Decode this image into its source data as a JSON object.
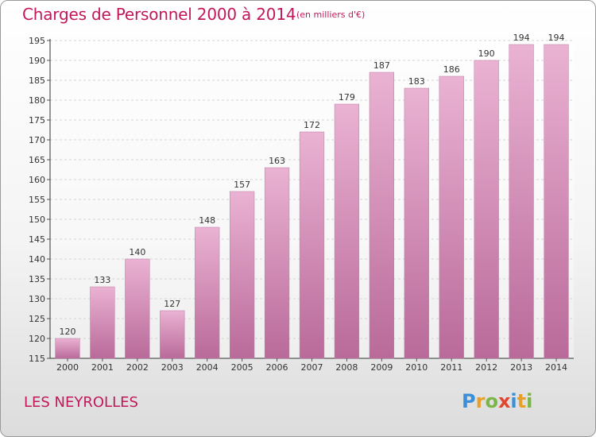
{
  "header": {
    "title": "Charges de Personnel 2000 à 2014",
    "subtitle": "(en milliers d'€)"
  },
  "footer": {
    "commune": "LES NEYROLLES",
    "logo_letters": [
      "P",
      "r",
      "o",
      "x",
      "i",
      "t",
      "i"
    ],
    "logo_colors": [
      "#3b8ed8",
      "#e8a02a",
      "#7ab648",
      "#e2452f",
      "#3b8ed8",
      "#e8a02a",
      "#7ab648"
    ]
  },
  "colors": {
    "bar": "#d98fbd",
    "bar_light": "#eab2d3",
    "bar_dark": "#b96a99",
    "text": "#c2185b",
    "grid": "#d4d4d4"
  },
  "chart_data": {
    "type": "bar",
    "title": "Charges de Personnel 2000 à 2014",
    "subtitle": "(en milliers d'€)",
    "categories": [
      "2000",
      "2001",
      "2002",
      "2003",
      "2004",
      "2005",
      "2006",
      "2007",
      "2008",
      "2009",
      "2010",
      "2011",
      "2012",
      "2013",
      "2014"
    ],
    "values": [
      120,
      133,
      140,
      127,
      148,
      157,
      163,
      172,
      179,
      187,
      183,
      186,
      190,
      194,
      194
    ],
    "ylim": [
      115,
      195
    ],
    "yticks": [
      115,
      120,
      125,
      130,
      135,
      140,
      145,
      150,
      155,
      160,
      165,
      170,
      175,
      180,
      185,
      190,
      195
    ],
    "grid": true,
    "data_labels": true
  }
}
